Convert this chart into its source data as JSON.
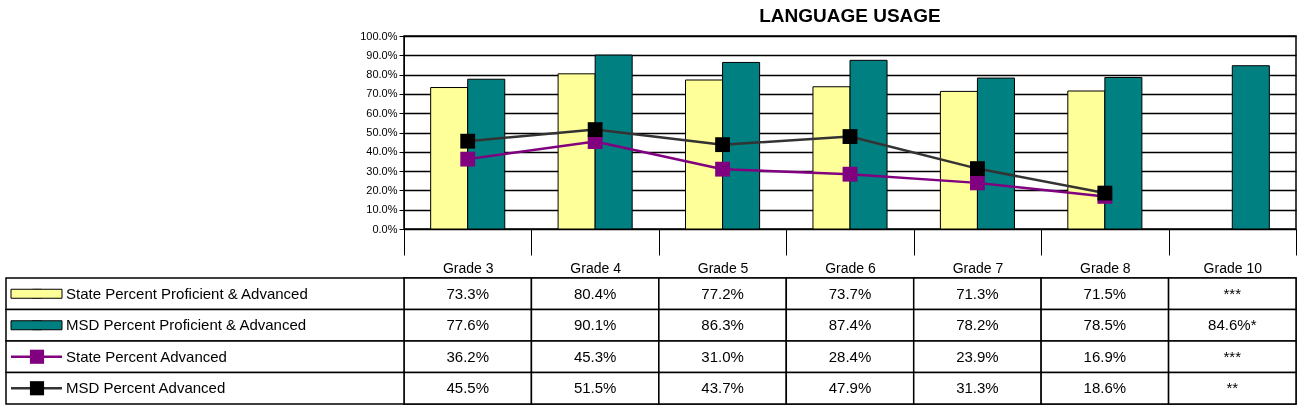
{
  "chart_data": {
    "type": "bar",
    "title": "LANGUAGE USAGE",
    "categories": [
      "Grade 3",
      "Grade 4",
      "Grade 5",
      "Grade 6",
      "Grade 7",
      "Grade 8",
      "Grade 10"
    ],
    "series": [
      {
        "name": "State Percent Proficient & Advanced",
        "color": "#ffff99",
        "values": [
          73.3,
          80.4,
          77.2,
          73.7,
          71.3,
          71.5,
          null
        ],
        "value_labels": [
          "73.3%",
          "80.4%",
          "77.2%",
          "73.7%",
          "71.3%",
          "71.5%",
          "***"
        ]
      },
      {
        "name": "MSD Percent Proficient & Advanced",
        "color": "#008080",
        "values": [
          77.6,
          90.1,
          86.3,
          87.4,
          78.2,
          78.5,
          84.6
        ],
        "value_labels": [
          "77.6%",
          "90.1%",
          "86.3%",
          "87.4%",
          "78.2%",
          "78.5%",
          "84.6%*"
        ]
      },
      {
        "name": "State Percent Advanced",
        "type": "line",
        "color": "#800080",
        "values": [
          36.2,
          45.3,
          31.0,
          28.4,
          23.9,
          16.9,
          null
        ],
        "value_labels": [
          "36.2%",
          "45.3%",
          "31.0%",
          "28.4%",
          "23.9%",
          "16.9%",
          "***"
        ]
      },
      {
        "name": "MSD Percent Advanced",
        "type": "line",
        "color": "#333333",
        "values": [
          45.5,
          51.5,
          43.7,
          47.9,
          31.3,
          18.6,
          null
        ],
        "value_labels": [
          "45.5%",
          "51.5%",
          "43.7%",
          "47.9%",
          "31.3%",
          "18.6%",
          "**"
        ]
      }
    ],
    "ylim": [
      0,
      100
    ],
    "yticks": [
      {
        "value": 0,
        "label": "0.0%"
      },
      {
        "value": 10,
        "label": "10.0%"
      },
      {
        "value": 20,
        "label": "20.0%"
      },
      {
        "value": 30,
        "label": "30.0%"
      },
      {
        "value": 40,
        "label": "40.0%"
      },
      {
        "value": 50,
        "label": "50.0%"
      },
      {
        "value": 60,
        "label": "60.0%"
      },
      {
        "value": 70,
        "label": "70.0%"
      },
      {
        "value": 80,
        "label": "80.0%"
      },
      {
        "value": 90,
        "label": "90.0%"
      },
      {
        "value": 100,
        "label": "100.0%"
      }
    ],
    "grid": "y",
    "legend": "bottom left",
    "marker": "square"
  }
}
